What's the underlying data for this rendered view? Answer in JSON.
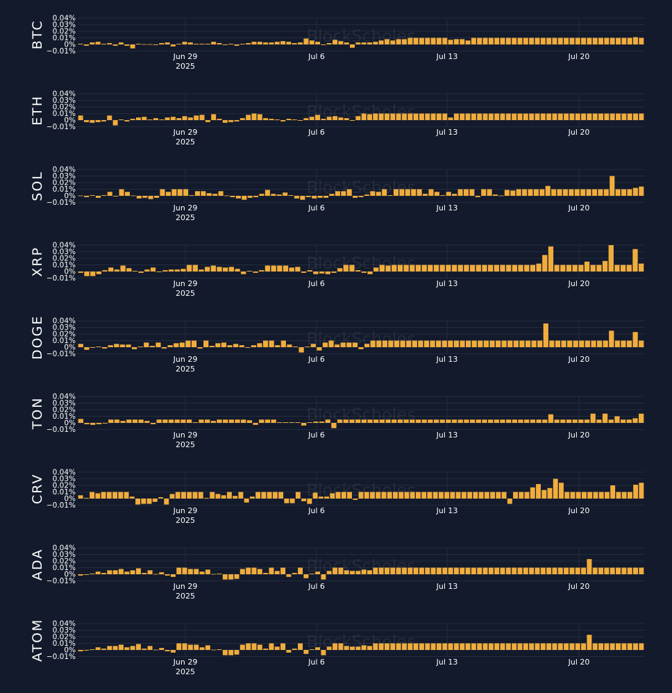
{
  "watermark": "BlockScholes",
  "colors": {
    "background": "#131a2b",
    "bar": "#f0ad3e",
    "grid": "#232c40",
    "text": "#ffffff"
  },
  "chart_data": [
    {
      "type": "bar",
      "ylabel": "BTC",
      "ylim": [
        -0.01,
        0.04
      ],
      "ytick_labels": [
        "0.04%",
        "0.03%",
        "0.02%",
        "0.01%",
        "0%",
        "−0.01%"
      ],
      "x_tick_labels": [
        {
          "label": "Jun 29",
          "sub": "2025"
        },
        {
          "label": "Jul 6"
        },
        {
          "label": "Jul 13"
        },
        {
          "label": "Jul 20"
        }
      ],
      "values": [
        0.001,
        -0.002,
        0.003,
        0.004,
        0.001,
        0.002,
        -0.002,
        0.003,
        -0.002,
        -0.006,
        0.001,
        0,
        0,
        -0.001,
        0.002,
        0.003,
        -0.003,
        0.001,
        0.004,
        0.003,
        0.001,
        0.001,
        0.001,
        0.004,
        0.002,
        -0.001,
        0.001,
        -0.002,
        0.001,
        0.002,
        0.004,
        0.004,
        0.003,
        0.003,
        0.004,
        0.005,
        0.004,
        0.002,
        0.003,
        0.009,
        0.006,
        0.004,
        -0.001,
        0.002,
        0.007,
        0.005,
        0.003,
        -0.005,
        0.003,
        0.003,
        0.003,
        0.004,
        0.006,
        0.008,
        0.006,
        0.008,
        0.008,
        0.01,
        0.01,
        0.01,
        0.01,
        0.01,
        0.01,
        0.01,
        0.007,
        0.008,
        0.008,
        0.006,
        0.01,
        0.01,
        0.01,
        0.01,
        0.01,
        0.01,
        0.01,
        0.01,
        0.01,
        0.01,
        0.01,
        0.01,
        0.01,
        0.01,
        0.01,
        0.01,
        0.01,
        0.01,
        0.01,
        0.01,
        0.01,
        0.01,
        0.01,
        0.01,
        0.01,
        0.01,
        0.01,
        0.01,
        0.011,
        0.01
      ]
    },
    {
      "type": "bar",
      "ylabel": "ETH",
      "ylim": [
        -0.01,
        0.04
      ],
      "ytick_labels": [
        "0.04%",
        "0.03%",
        "0.02%",
        "0.01%",
        "0%",
        "−0.01%"
      ],
      "x_tick_labels": [
        {
          "label": "Jun 29",
          "sub": "2025"
        },
        {
          "label": "Jul 6"
        },
        {
          "label": "Jul 13"
        },
        {
          "label": "Jul 20"
        }
      ],
      "values": [
        0.007,
        -0.003,
        -0.004,
        -0.003,
        -0.002,
        0.007,
        -0.008,
        0.001,
        -0.002,
        0.002,
        0.004,
        0.005,
        0.001,
        0.003,
        0.001,
        0.004,
        0.005,
        0.003,
        0.006,
        0.004,
        0.007,
        0.008,
        -0.003,
        0.009,
        0.002,
        -0.004,
        -0.003,
        -0.002,
        0.003,
        0.008,
        0.01,
        0.009,
        0.003,
        0.002,
        0.001,
        -0.002,
        0.002,
        0.001,
        -0.001,
        0.003,
        0.005,
        0.008,
        0.002,
        0.005,
        0.006,
        0.004,
        0.003,
        -0.001,
        0.006,
        0.01,
        0.009,
        0.01,
        0.01,
        0.01,
        0.01,
        0.01,
        0.01,
        0.01,
        0.01,
        0.01,
        0.01,
        0.01,
        0.01,
        0.01,
        0.004,
        0.01,
        0.01,
        0.01,
        0.01,
        0.01,
        0.01,
        0.01,
        0.01,
        0.01,
        0.01,
        0.01,
        0.01,
        0.01,
        0.01,
        0.01,
        0.01,
        0.01,
        0.01,
        0.01,
        0.01,
        0.01,
        0.01,
        0.01,
        0.01,
        0.01,
        0.01,
        0.01,
        0.01,
        0.01,
        0.01,
        0.01,
        0.01,
        0.01
      ]
    },
    {
      "type": "bar",
      "ylabel": "SOL",
      "ylim": [
        -0.01,
        0.04
      ],
      "ytick_labels": [
        "0.04%",
        "0.03%",
        "0.02%",
        "0.01%",
        "0%",
        "−0.01%"
      ],
      "x_tick_labels": [
        {
          "label": "Jun 29",
          "sub": "2025"
        },
        {
          "label": "Jul 6"
        },
        {
          "label": "Jul 13"
        },
        {
          "label": "Jul 20"
        }
      ],
      "values": [
        0,
        -0.002,
        0.001,
        -0.003,
        0.001,
        0.006,
        -0.001,
        0.01,
        0.006,
        0,
        -0.004,
        -0.003,
        -0.005,
        -0.003,
        0.01,
        0.006,
        0.01,
        0.01,
        0.01,
        0.001,
        0.007,
        0.007,
        0.004,
        0.003,
        0.007,
        0,
        -0.002,
        -0.004,
        -0.006,
        -0.003,
        -0.002,
        0.003,
        0.009,
        0.003,
        0.002,
        0.005,
        0.001,
        -0.004,
        -0.006,
        -0.002,
        -0.004,
        -0.003,
        -0.003,
        0.003,
        0.007,
        0.007,
        0.01,
        -0.003,
        -0.002,
        0.002,
        0.007,
        0.006,
        0.01,
        0.001,
        0.01,
        0.01,
        0.01,
        0.01,
        0.01,
        0.003,
        0.01,
        0.006,
        0.001,
        0.006,
        0.003,
        0.01,
        0.01,
        0.01,
        -0.002,
        0.01,
        0.01,
        0.002,
        0,
        0.009,
        0.008,
        0.01,
        0.01,
        0.01,
        0.01,
        0.01,
        0.015,
        0.01,
        0.01,
        0.01,
        0.01,
        0.01,
        0.01,
        0.01,
        0.01,
        0.01,
        0.01,
        0.03,
        0.01,
        0.01,
        0.01,
        0.012,
        0.014
      ]
    },
    {
      "type": "bar",
      "ylabel": "XRP",
      "ylim": [
        -0.01,
        0.04
      ],
      "ytick_labels": [
        "0.04%",
        "0.03%",
        "0.02%",
        "0.01%",
        "0%",
        "−0.01%"
      ],
      "x_tick_labels": [
        {
          "label": "Jun 29",
          "sub": "2025"
        },
        {
          "label": "Jul 6"
        },
        {
          "label": "Jul 13"
        },
        {
          "label": "Jul 20"
        }
      ],
      "values": [
        -0.002,
        -0.007,
        -0.007,
        -0.004,
        0.002,
        0.006,
        0.003,
        0.009,
        0.005,
        0.001,
        -0.002,
        0.003,
        0.006,
        -0.001,
        0.002,
        0.003,
        0.003,
        0.004,
        0.01,
        0.01,
        0.003,
        0.007,
        0.009,
        0.007,
        0.006,
        0.007,
        0.004,
        -0.004,
        0.001,
        -0.002,
        0.002,
        0.009,
        0.009,
        0.009,
        0.009,
        0.006,
        0.007,
        -0.002,
        0.002,
        -0.004,
        -0.003,
        -0.004,
        -0.002,
        0.005,
        0.01,
        0.01,
        0.002,
        -0.002,
        -0.004,
        0.006,
        0.01,
        0.009,
        0.01,
        0.01,
        0.01,
        0.01,
        0.01,
        0.01,
        0.01,
        0.01,
        0.01,
        0.01,
        0.01,
        0.01,
        0.01,
        0.01,
        0.01,
        0.01,
        0.01,
        0.01,
        0.01,
        0.01,
        0.01,
        0.01,
        0.01,
        0.01,
        0.012,
        0.025,
        0.038,
        0.01,
        0.01,
        0.01,
        0.01,
        0.01,
        0.015,
        0.01,
        0.01,
        0.016,
        0.04,
        0.01,
        0.01,
        0.01,
        0.034,
        0.012
      ]
    },
    {
      "type": "bar",
      "ylabel": "DOGE",
      "ylim": [
        -0.01,
        0.04
      ],
      "ytick_labels": [
        "0.04%",
        "0.03%",
        "0.02%",
        "0.01%",
        "0%",
        "−0.01%"
      ],
      "x_tick_labels": [
        {
          "label": "Jun 29",
          "sub": "2025"
        },
        {
          "label": "Jul 6"
        },
        {
          "label": "Jul 13"
        },
        {
          "label": "Jul 20"
        }
      ],
      "values": [
        0.005,
        -0.004,
        -0.001,
        0.001,
        -0.002,
        0.003,
        0.005,
        0.004,
        0.004,
        -0.003,
        0.001,
        0.007,
        0.002,
        0.007,
        -0.002,
        0.003,
        0.006,
        0.007,
        0.01,
        0.01,
        -0.002,
        0.01,
        0.002,
        0.006,
        0.007,
        0.003,
        0.005,
        0.003,
        -0.001,
        0.003,
        0.006,
        0.01,
        0.01,
        0.003,
        0.01,
        0.004,
        0.001,
        -0.008,
        0.001,
        0.005,
        -0.005,
        0.007,
        0.01,
        0.004,
        0.007,
        0.007,
        0.007,
        -0.003,
        0.005,
        0.01,
        0.01,
        0.01,
        0.01,
        0.01,
        0.01,
        0.01,
        0.01,
        0.01,
        0.01,
        0.01,
        0.01,
        0.01,
        0.01,
        0.01,
        0.01,
        0.01,
        0.01,
        0.01,
        0.01,
        0.01,
        0.01,
        0.01,
        0.01,
        0.01,
        0.01,
        0.01,
        0.01,
        0.01,
        0.036,
        0.01,
        0.01,
        0.01,
        0.01,
        0.01,
        0.01,
        0.01,
        0.01,
        0.01,
        0.01,
        0.025,
        0.01,
        0.01,
        0.01,
        0.023,
        0.01
      ]
    },
    {
      "type": "bar",
      "ylabel": "TON",
      "ylim": [
        -0.01,
        0.04
      ],
      "ytick_labels": [
        "0.04%",
        "0.03%",
        "0.02%",
        "0.01%",
        "0%",
        "−0.01%"
      ],
      "x_tick_labels": [
        {
          "label": "Jun 29",
          "sub": "2025"
        },
        {
          "label": "Jul 6"
        },
        {
          "label": "Jul 13"
        },
        {
          "label": "Jul 20"
        }
      ],
      "values": [
        0.006,
        -0.002,
        -0.003,
        -0.002,
        -0.001,
        0.005,
        0.005,
        0.003,
        0.005,
        0.005,
        0.005,
        0.003,
        -0.002,
        0.005,
        0.005,
        0.005,
        0.005,
        0.005,
        0.005,
        0.001,
        0.005,
        0.005,
        0.003,
        0.005,
        0.005,
        0.005,
        0.005,
        0.005,
        0.004,
        -0.003,
        0.005,
        0.005,
        0.005,
        0.001,
        0.001,
        0.001,
        0.001,
        -0.004,
        0.001,
        0.002,
        0.002,
        0.005,
        -0.008,
        0.005,
        0.005,
        0.005,
        0.005,
        0.005,
        0.005,
        0.005,
        0.005,
        0.005,
        0.005,
        0.005,
        0.005,
        0.005,
        0.005,
        0.005,
        0.005,
        0.005,
        0.005,
        0.005,
        0.005,
        0.005,
        0.005,
        0.005,
        0.005,
        0.005,
        0.005,
        0.005,
        0.005,
        0.005,
        0.005,
        0.005,
        0.005,
        0.005,
        0.005,
        0.005,
        0.013,
        0.005,
        0.005,
        0.005,
        0.005,
        0.005,
        0.005,
        0.014,
        0.005,
        0.014,
        0.005,
        0.01,
        0.005,
        0.005,
        0.007,
        0.014
      ]
    },
    {
      "type": "bar",
      "ylabel": "CRV",
      "ylim": [
        -0.01,
        0.04
      ],
      "ytick_labels": [
        "0.04%",
        "0.03%",
        "0.02%",
        "0.01%",
        "0%",
        "−0.01%"
      ],
      "x_tick_labels": [
        {
          "label": "Jun 29",
          "sub": "2025"
        },
        {
          "label": "Jul 6"
        },
        {
          "label": "Jul 13"
        },
        {
          "label": "Jul 20"
        }
      ],
      "values": [
        0.005,
        0.001,
        0.01,
        0.008,
        0.01,
        0.01,
        0.01,
        0.01,
        0.01,
        0.003,
        -0.009,
        -0.008,
        -0.008,
        -0.005,
        0.002,
        -0.009,
        0.007,
        0.01,
        0.01,
        0.01,
        0.01,
        0.01,
        0.001,
        0.01,
        0.007,
        0.005,
        0.01,
        0.004,
        0.01,
        -0.006,
        0.003,
        0.01,
        0.01,
        0.01,
        0.01,
        0.01,
        -0.007,
        -0.007,
        0.01,
        -0.004,
        -0.008,
        0.009,
        0.003,
        0.003,
        0.008,
        0.01,
        0.01,
        0.01,
        -0.002,
        0.01,
        0.01,
        0.01,
        0.01,
        0.01,
        0.01,
        0.01,
        0.01,
        0.01,
        0.01,
        0.01,
        0.01,
        0.01,
        0.01,
        0.01,
        0.01,
        0.01,
        0.01,
        0.01,
        0.01,
        0.01,
        0.01,
        0.01,
        0.01,
        0.01,
        0.01,
        -0.008,
        0.01,
        0.01,
        0.01,
        0.017,
        0.022,
        0.013,
        0.016,
        0.03,
        0.024,
        0.01,
        0.01,
        0.01,
        0.01,
        0.01,
        0.01,
        0.01,
        0.01,
        0.02,
        0.01,
        0.01,
        0.01,
        0.021,
        0.024
      ]
    },
    {
      "type": "bar",
      "ylabel": "ADA",
      "ylim": [
        -0.01,
        0.04
      ],
      "ytick_labels": [
        "0.04%",
        "0.03%",
        "0.02%",
        "0.01%",
        "0%",
        "−0.01%"
      ],
      "x_tick_labels": [
        {
          "label": "Jun 29",
          "sub": "2025"
        },
        {
          "label": "Jul 6"
        },
        {
          "label": "Jul 13"
        },
        {
          "label": "Jul 20"
        }
      ],
      "values": [
        -0.002,
        -0.001,
        0.001,
        0.004,
        0.002,
        0.006,
        0.006,
        0.008,
        0.004,
        0.006,
        0.009,
        0.002,
        0.006,
        0,
        0.003,
        -0.002,
        -0.004,
        0.01,
        0.01,
        0.008,
        0.008,
        0.004,
        0.007,
        0,
        0.001,
        -0.008,
        -0.008,
        -0.007,
        0.008,
        0.01,
        0.01,
        0.008,
        0.002,
        0.01,
        0.005,
        0.01,
        -0.004,
        0.002,
        0.01,
        -0.006,
        0.001,
        0.004,
        -0.008,
        0.005,
        0.01,
        0.01,
        0.006,
        0.005,
        0.005,
        0.007,
        0.006,
        0.01,
        0.01,
        0.01,
        0.01,
        0.01,
        0.01,
        0.01,
        0.01,
        0.01,
        0.01,
        0.01,
        0.01,
        0.01,
        0.01,
        0.01,
        0.01,
        0.01,
        0.01,
        0.01,
        0.01,
        0.01,
        0.01,
        0.01,
        0.01,
        0.01,
        0.01,
        0.01,
        0.01,
        0.01,
        0.01,
        0.01,
        0.01,
        0.01,
        0.01,
        0.01,
        0.01,
        0.01,
        0.023,
        0.01,
        0.01,
        0.01,
        0.01,
        0.01,
        0.01,
        0.01,
        0.01,
        0.01
      ]
    },
    {
      "type": "bar",
      "ylabel": "ATOM",
      "ylim": [
        -0.01,
        0.04
      ],
      "ytick_labels": [
        "0.04%",
        "0.03%",
        "0.02%",
        "0.01%",
        "0%",
        "−0.01%"
      ],
      "x_tick_labels": [
        {
          "label": "Jun 29",
          "sub": "2025"
        },
        {
          "label": "Jul 6"
        },
        {
          "label": "Jul 13"
        },
        {
          "label": "Jul 20"
        }
      ],
      "values": [
        -0.002,
        -0.001,
        0.001,
        0.004,
        0.002,
        0.006,
        0.006,
        0.008,
        0.004,
        0.006,
        0.009,
        0.002,
        0.006,
        0,
        0.003,
        -0.002,
        -0.004,
        0.01,
        0.01,
        0.008,
        0.008,
        0.004,
        0.007,
        0,
        0.001,
        -0.008,
        -0.008,
        -0.007,
        0.008,
        0.01,
        0.01,
        0.008,
        0.002,
        0.01,
        0.005,
        0.01,
        -0.004,
        0.002,
        0.01,
        -0.006,
        0.001,
        0.004,
        -0.008,
        0.005,
        0.01,
        0.01,
        0.006,
        0.005,
        0.005,
        0.007,
        0.006,
        0.01,
        0.01,
        0.01,
        0.01,
        0.01,
        0.01,
        0.01,
        0.01,
        0.01,
        0.01,
        0.01,
        0.01,
        0.01,
        0.01,
        0.01,
        0.01,
        0.01,
        0.01,
        0.01,
        0.01,
        0.01,
        0.01,
        0.01,
        0.01,
        0.01,
        0.01,
        0.01,
        0.01,
        0.01,
        0.01,
        0.01,
        0.01,
        0.01,
        0.01,
        0.01,
        0.01,
        0.01,
        0.023,
        0.01,
        0.01,
        0.01,
        0.01,
        0.01,
        0.01,
        0.01,
        0.01,
        0.01
      ]
    }
  ]
}
